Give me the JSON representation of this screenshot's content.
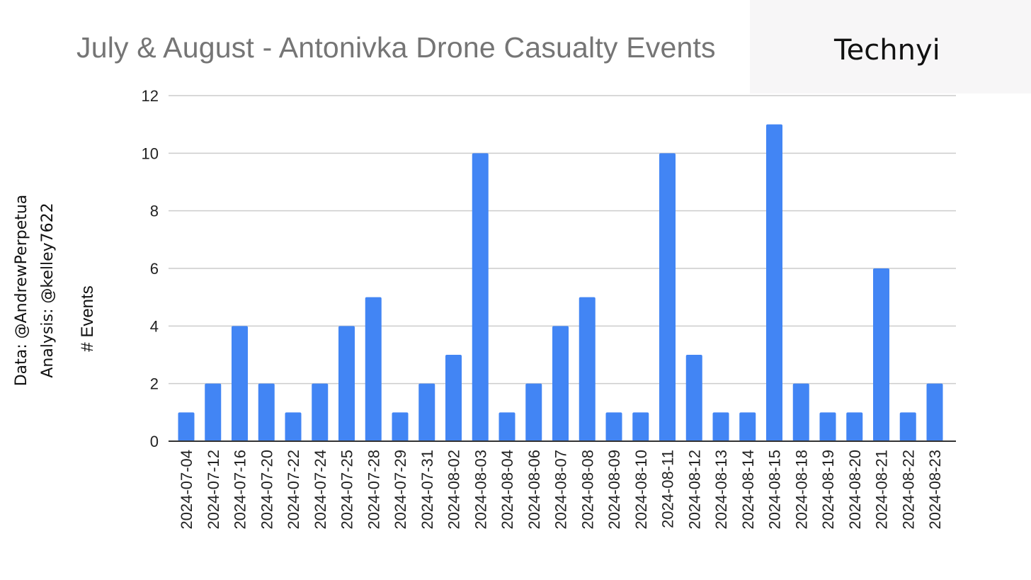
{
  "title": "July & August - Antonivka Drone Casualty Events",
  "logo": {
    "text": "Technyi",
    "accent_colors": [
      "#2a6fd6",
      "#f2c314"
    ]
  },
  "credits": {
    "data_line": "Data: @AndrewPerpetua",
    "analysis_line": "Analysis: @kelley7622"
  },
  "colors": {
    "bar": "#4285f4",
    "grid": "#cccccc",
    "axis": "#333333",
    "text": "#222222"
  },
  "chart_data": {
    "type": "bar",
    "title": "July & August - Antonivka Drone Casualty Events",
    "xlabel": "",
    "ylabel": "# Events",
    "ylim": [
      0,
      12
    ],
    "yticks": [
      0,
      2,
      4,
      6,
      8,
      10,
      12
    ],
    "grid": true,
    "categories": [
      "2024-07-04",
      "2024-07-12",
      "2024-07-16",
      "2024-07-20",
      "2024-07-22",
      "2024-07-24",
      "2024-07-25",
      "2024-07-28",
      "2024-07-29",
      "2024-07-31",
      "2024-08-02",
      "2024-08-03",
      "2024-08-04",
      "2024-08-06",
      "2024-08-07",
      "2024-08-08",
      "2024-08-09",
      "2024-08-10",
      "2024-08-11",
      "2024-08-12",
      "2024-08-13",
      "2024-08-14",
      "2024-08-15",
      "2024-08-18",
      "2024-08-19",
      "2024-08-20",
      "2024-08-21",
      "2024-08-22",
      "2024-08-23"
    ],
    "values": [
      1,
      2,
      4,
      2,
      1,
      2,
      4,
      5,
      1,
      2,
      3,
      10,
      1,
      2,
      4,
      5,
      1,
      1,
      10,
      3,
      1,
      1,
      11,
      2,
      1,
      1,
      6,
      1,
      2
    ]
  }
}
